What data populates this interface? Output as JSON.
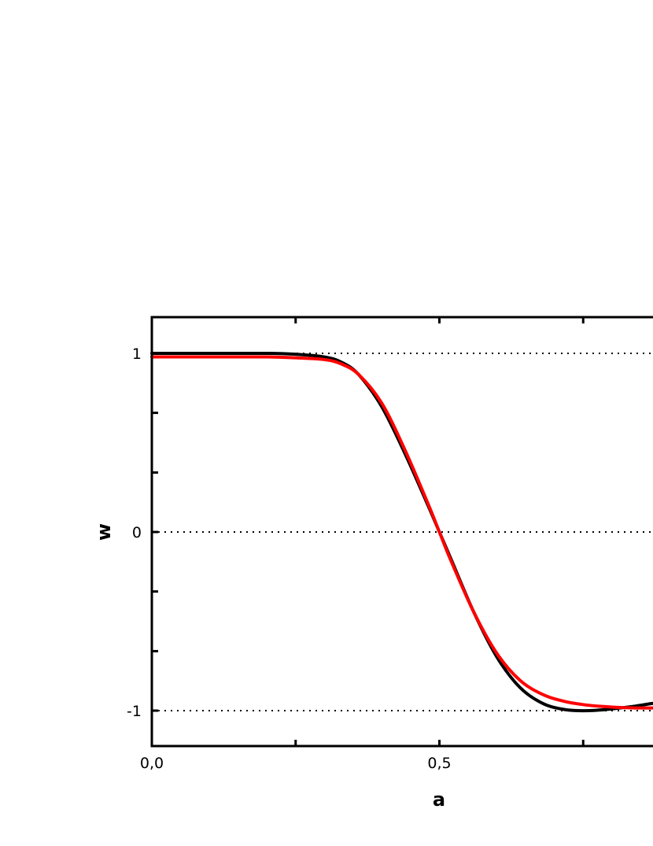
{
  "chart_data": {
    "type": "line",
    "xlabel": "a",
    "ylabel": "w",
    "xlim": [
      0.0,
      0.9
    ],
    "ylim": [
      -1.2,
      1.2
    ],
    "x_ticks": [
      {
        "value": 0.0,
        "label": "0,0"
      },
      {
        "value": 0.5,
        "label": "0,5"
      }
    ],
    "x_minor_ticks": [
      0.25,
      0.75
    ],
    "y_ticks": [
      {
        "value": 1,
        "label": "1"
      },
      {
        "value": 0,
        "label": "0"
      },
      {
        "value": -1,
        "label": "-1"
      }
    ],
    "y_minor_ticks": [
      0.667,
      0.333,
      -0.333,
      -0.667
    ],
    "reference_lines": [
      1,
      0,
      -1
    ],
    "grid": false,
    "legend": "none",
    "series": [
      {
        "color": "#000000",
        "x": [
          0.0,
          0.1,
          0.2,
          0.25,
          0.3,
          0.33,
          0.36,
          0.4,
          0.44,
          0.48,
          0.5,
          0.52,
          0.56,
          0.6,
          0.64,
          0.68,
          0.72,
          0.76,
          0.8,
          0.84,
          0.87,
          0.9
        ],
        "y": [
          1.0,
          1.0,
          1.0,
          0.995,
          0.98,
          0.95,
          0.88,
          0.7,
          0.44,
          0.15,
          0.0,
          -0.15,
          -0.45,
          -0.7,
          -0.87,
          -0.96,
          -0.995,
          -1.0,
          -0.99,
          -0.975,
          -0.96,
          -0.95
        ]
      },
      {
        "color": "#ff0000",
        "x": [
          0.0,
          0.1,
          0.2,
          0.25,
          0.3,
          0.33,
          0.36,
          0.4,
          0.44,
          0.48,
          0.5,
          0.52,
          0.56,
          0.6,
          0.64,
          0.68,
          0.72,
          0.76,
          0.8,
          0.84,
          0.87,
          0.9
        ],
        "y": [
          0.98,
          0.98,
          0.98,
          0.975,
          0.965,
          0.94,
          0.88,
          0.72,
          0.46,
          0.16,
          0.0,
          -0.16,
          -0.45,
          -0.68,
          -0.83,
          -0.91,
          -0.95,
          -0.97,
          -0.98,
          -0.985,
          -0.985,
          -0.985
        ]
      }
    ],
    "colors": {
      "axis": "#000000",
      "series_1": "#000000",
      "series_2": "#ff0000"
    }
  }
}
